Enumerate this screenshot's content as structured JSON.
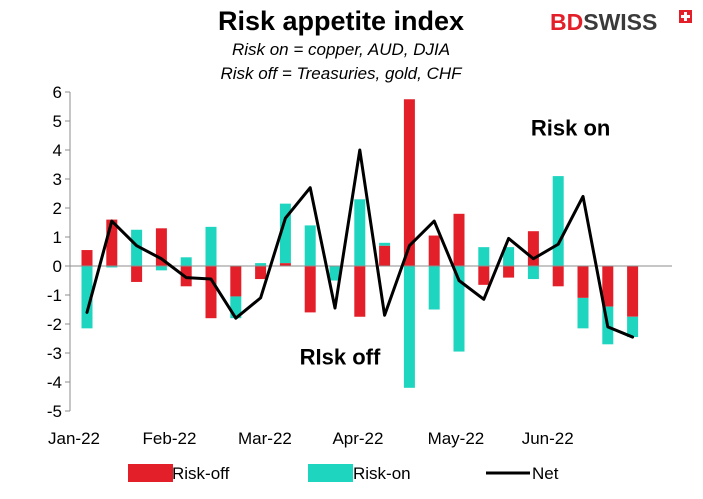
{
  "chart_data": {
    "type": "bar",
    "title": "Risk appetite index",
    "subtitle_lines": [
      "Risk on = copper, AUD, DJIA",
      "Risk off = Treasuries, gold, CHF"
    ],
    "ylim": [
      -5,
      6
    ],
    "yticks": [
      6,
      5,
      4,
      3,
      2,
      1,
      0,
      -1,
      -2,
      -3,
      -4,
      -5
    ],
    "ytick_labels": [
      "6",
      "5",
      "4",
      "3",
      "2",
      "1",
      "0",
      "-1",
      "-2",
      "-3",
      "-4",
      "-5"
    ],
    "x_tick_labels": [
      "Jan-22",
      "Feb-22",
      "Mar-22",
      "Apr-22",
      "May-22",
      "Jun-22"
    ],
    "x_tick_positions": [
      0,
      3.85,
      7.7,
      11.45,
      15.4,
      19.1
    ],
    "n_periods": 23,
    "stacked": true,
    "series": [
      {
        "name": "Risk-off",
        "color": "#e3202a",
        "values": [
          0.55,
          1.6,
          -0.55,
          1.3,
          -0.7,
          -1.8,
          -1.05,
          -0.45,
          0.1,
          -1.6,
          0.0,
          -1.75,
          0.7,
          5.75,
          1.05,
          1.8,
          -0.65,
          -0.4,
          1.2,
          -0.7,
          -1.1,
          -1.4,
          -1.75
        ]
      },
      {
        "name": "Risk-on",
        "color": "#1ed5c0",
        "values": [
          -2.15,
          -0.05,
          1.25,
          -0.15,
          0.3,
          1.35,
          -0.75,
          0.1,
          2.05,
          1.4,
          -0.5,
          2.3,
          0.1,
          -4.2,
          -1.5,
          -2.95,
          0.65,
          0.65,
          -0.45,
          3.1,
          -1.05,
          -1.3,
          -0.7
        ]
      },
      {
        "name": "Net",
        "color": "#000000",
        "values": [
          -1.6,
          1.55,
          0.7,
          0.25,
          -0.4,
          -0.45,
          -1.8,
          -1.1,
          1.65,
          2.7,
          -1.45,
          4.0,
          -1.7,
          0.7,
          1.55,
          -0.5,
          -1.15,
          0.95,
          0.25,
          0.75,
          2.4,
          -2.1,
          -2.45
        ]
      }
    ],
    "annotations": [
      {
        "text": "Risk on",
        "anchor_x": 19.5,
        "anchor_y": 4.5
      },
      {
        "text": "RIsk off",
        "anchor_x": 10.2,
        "anchor_y": -3.4
      }
    ],
    "legend_position": "bottom",
    "grid": false
  },
  "branding": {
    "logo_text_red": "BD",
    "logo_text_dark": "SWISS",
    "logo_colors": {
      "red": "#e3202a",
      "dark": "#3a3a3a"
    }
  }
}
